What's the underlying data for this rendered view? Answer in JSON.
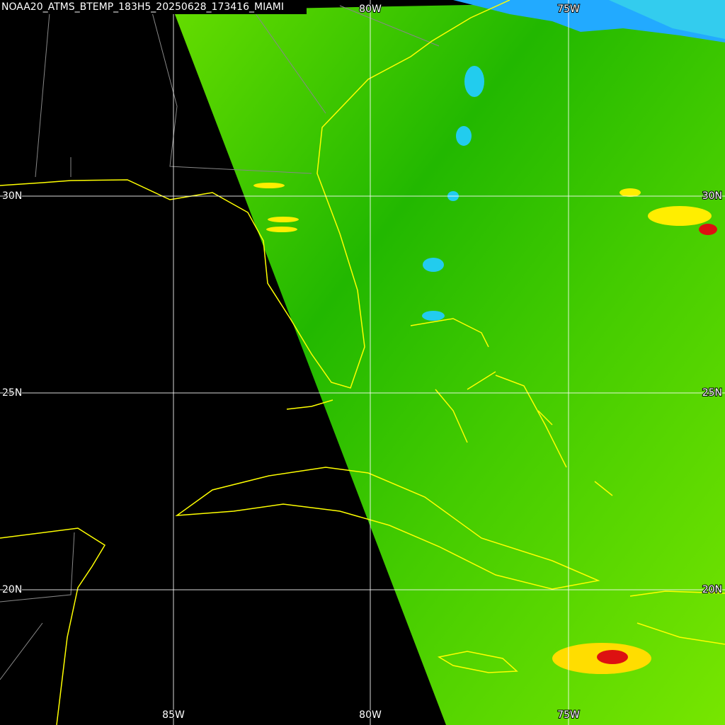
{
  "title": "NOAA20_ATMS_BTEMP_183H5_20250628_173416_MIAMI",
  "grid_labels": {
    "top": [
      "80W",
      "75W"
    ],
    "bottom": [
      "85W",
      "80W",
      "75W"
    ],
    "left": [
      "30N",
      "25N",
      "20N"
    ],
    "right": [
      "30N",
      "25N",
      "20N"
    ]
  }
}
